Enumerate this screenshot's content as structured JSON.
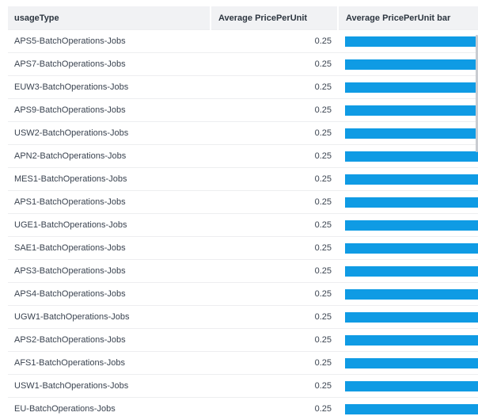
{
  "table": {
    "columns": [
      "usageType",
      "Average PricePerUnit",
      "Average PricePerUnit bar"
    ],
    "bar_color": "#0f9be4",
    "bar_max": 0.25,
    "rows": [
      {
        "usage_type": "APS5-BatchOperations-Jobs",
        "price": "0.25",
        "bar_value": 0.25
      },
      {
        "usage_type": "APS7-BatchOperations-Jobs",
        "price": "0.25",
        "bar_value": 0.25
      },
      {
        "usage_type": "EUW3-BatchOperations-Jobs",
        "price": "0.25",
        "bar_value": 0.25
      },
      {
        "usage_type": "APS9-BatchOperations-Jobs",
        "price": "0.25",
        "bar_value": 0.25
      },
      {
        "usage_type": "USW2-BatchOperations-Jobs",
        "price": "0.25",
        "bar_value": 0.25
      },
      {
        "usage_type": "APN2-BatchOperations-Jobs",
        "price": "0.25",
        "bar_value": 0.25
      },
      {
        "usage_type": "MES1-BatchOperations-Jobs",
        "price": "0.25",
        "bar_value": 0.25
      },
      {
        "usage_type": "APS1-BatchOperations-Jobs",
        "price": "0.25",
        "bar_value": 0.25
      },
      {
        "usage_type": "UGE1-BatchOperations-Jobs",
        "price": "0.25",
        "bar_value": 0.25
      },
      {
        "usage_type": "SAE1-BatchOperations-Jobs",
        "price": "0.25",
        "bar_value": 0.25
      },
      {
        "usage_type": "APS3-BatchOperations-Jobs",
        "price": "0.25",
        "bar_value": 0.25
      },
      {
        "usage_type": "APS4-BatchOperations-Jobs",
        "price": "0.25",
        "bar_value": 0.25
      },
      {
        "usage_type": "UGW1-BatchOperations-Jobs",
        "price": "0.25",
        "bar_value": 0.25
      },
      {
        "usage_type": "APS2-BatchOperations-Jobs",
        "price": "0.25",
        "bar_value": 0.25
      },
      {
        "usage_type": "AFS1-BatchOperations-Jobs",
        "price": "0.25",
        "bar_value": 0.25
      },
      {
        "usage_type": "USW1-BatchOperations-Jobs",
        "price": "0.25",
        "bar_value": 0.25
      },
      {
        "usage_type": "EU-BatchOperations-Jobs",
        "price": "0.25",
        "bar_value": 0.25
      }
    ]
  }
}
